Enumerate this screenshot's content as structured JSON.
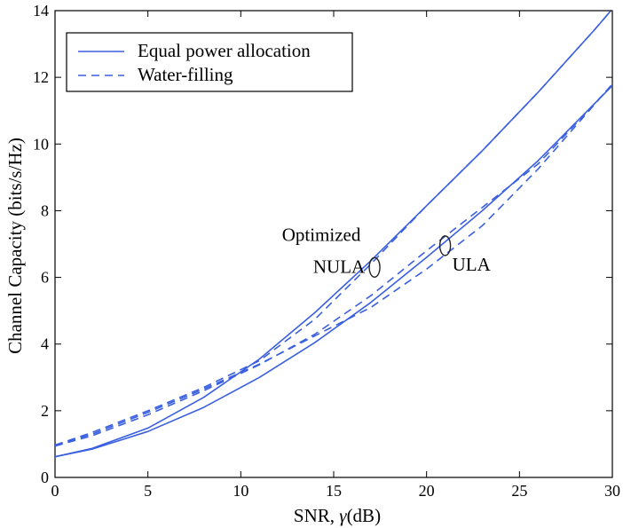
{
  "chart_data": {
    "type": "line",
    "title": "",
    "xlabel_prefix": "SNR, ",
    "xlabel_symbol": "γ",
    "xlabel_suffix": "(dB)",
    "ylabel": "Channel Capacity (bits/s/Hz)",
    "xlim": [
      0,
      30
    ],
    "ylim": [
      0,
      14
    ],
    "xticks": [
      0,
      5,
      10,
      15,
      20,
      25,
      30
    ],
    "yticks": [
      0,
      2,
      4,
      6,
      8,
      10,
      12,
      14
    ],
    "grid": false,
    "legend_position": "top-left",
    "legend": [
      {
        "label": "Equal power allocation",
        "style": "solid"
      },
      {
        "label": "Water-filling",
        "style": "dashed"
      }
    ],
    "color": "#3A5FE0",
    "series": [
      {
        "name": "Optimized NULA - Equal power allocation",
        "style": "solid",
        "x": [
          0,
          2,
          5,
          8,
          11,
          14,
          17,
          20,
          23,
          26,
          29,
          30
        ],
        "y": [
          0.62,
          0.87,
          1.48,
          2.4,
          3.55,
          4.95,
          6.5,
          8.15,
          9.8,
          11.55,
          13.4,
          14.05
        ]
      },
      {
        "name": "Optimized NULA - Water-filling",
        "style": "dashed",
        "x": [
          0,
          2,
          5,
          8,
          11,
          14,
          17,
          20,
          23,
          26,
          29,
          30
        ],
        "y": [
          0.97,
          1.35,
          2.0,
          2.7,
          3.5,
          4.75,
          6.4,
          8.15,
          9.8,
          11.55,
          13.4,
          14.05
        ]
      },
      {
        "name": "ULA - Equal power allocation",
        "style": "solid",
        "x": [
          0,
          2,
          5,
          8,
          11,
          14,
          17,
          20,
          23,
          26,
          30
        ],
        "y": [
          0.62,
          0.85,
          1.38,
          2.1,
          3.0,
          4.05,
          5.25,
          6.6,
          8.0,
          9.5,
          11.75
        ]
      },
      {
        "name": "ULA - Water-filling (1)",
        "style": "dashed",
        "x": [
          0,
          2,
          5,
          8,
          11,
          14,
          17,
          20,
          23,
          26,
          30
        ],
        "y": [
          0.97,
          1.3,
          1.95,
          2.65,
          3.4,
          4.25,
          5.1,
          6.25,
          7.55,
          9.25,
          11.8
        ]
      },
      {
        "name": "ULA - Water-filling (2)",
        "style": "dashed",
        "x": [
          0,
          2,
          5,
          8,
          11,
          14,
          17,
          20,
          23,
          26,
          30
        ],
        "y": [
          0.94,
          1.25,
          1.88,
          2.6,
          3.38,
          4.3,
          5.45,
          6.8,
          8.1,
          9.4,
          11.78
        ]
      }
    ],
    "annotations": [
      {
        "id": "nula",
        "lines": [
          "Optimized",
          "NULA"
        ],
        "ellipse_at": [
          17.2,
          6.3
        ]
      },
      {
        "id": "ula",
        "lines": [
          "ULA"
        ],
        "ellipse_at": [
          21.0,
          6.95
        ]
      }
    ]
  }
}
